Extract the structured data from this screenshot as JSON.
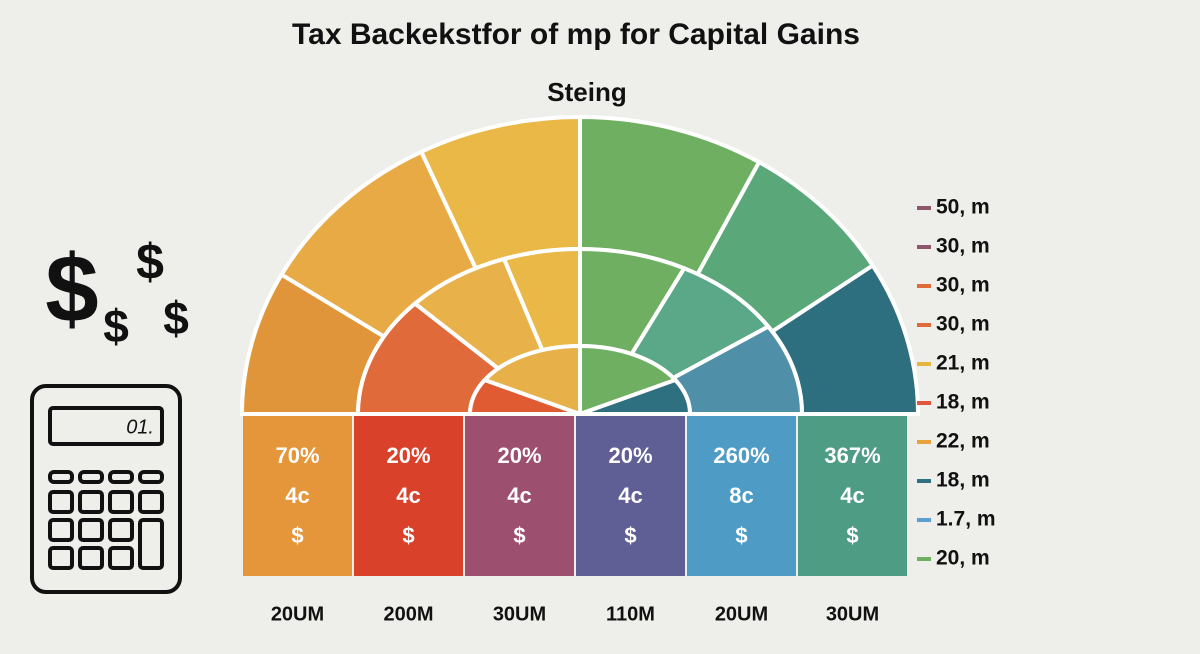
{
  "header": {
    "title": "Tax Backekstfor of mp for Capital Gains",
    "subtitle": "Steing"
  },
  "icons": {
    "dollars": [
      "$",
      "$",
      "$",
      "$"
    ],
    "calculator_display": "01."
  },
  "columns": [
    {
      "percent": "70%",
      "amount": "4c",
      "symbol": "$",
      "label": "20UM",
      "color": "#e5953a"
    },
    {
      "percent": "20%",
      "amount": "4c",
      "symbol": "$",
      "label": "200M",
      "color": "#d9412b"
    },
    {
      "percent": "20%",
      "amount": "4c",
      "symbol": "$",
      "label": "30UM",
      "color": "#9c4f6e"
    },
    {
      "percent": "20%",
      "amount": "4c",
      "symbol": "$",
      "label": "110M",
      "color": "#5f5f96"
    },
    {
      "percent": "260%",
      "amount": "8c",
      "symbol": "$",
      "label": "20UM",
      "color": "#4e9bc6"
    },
    {
      "percent": "367%",
      "amount": "4c",
      "symbol": "$",
      "label": "30UM",
      "color": "#4f9c84"
    }
  ],
  "legend": [
    {
      "label": "50, m",
      "color": "#8c566c"
    },
    {
      "label": "30, m",
      "color": "#8c566c"
    },
    {
      "label": "30, m",
      "color": "#e06a3a"
    },
    {
      "label": "30, m",
      "color": "#e06a3a"
    },
    {
      "label": "21, m",
      "color": "#e8b540"
    },
    {
      "label": "18, m",
      "color": "#e0563a"
    },
    {
      "label": "22, m",
      "color": "#e8a23a"
    },
    {
      "label": "18, m",
      "color": "#2e6f80"
    },
    {
      "label": "1.7, m",
      "color": "#5aa0d0"
    },
    {
      "label": "20, m",
      "color": "#6eb060"
    }
  ]
}
